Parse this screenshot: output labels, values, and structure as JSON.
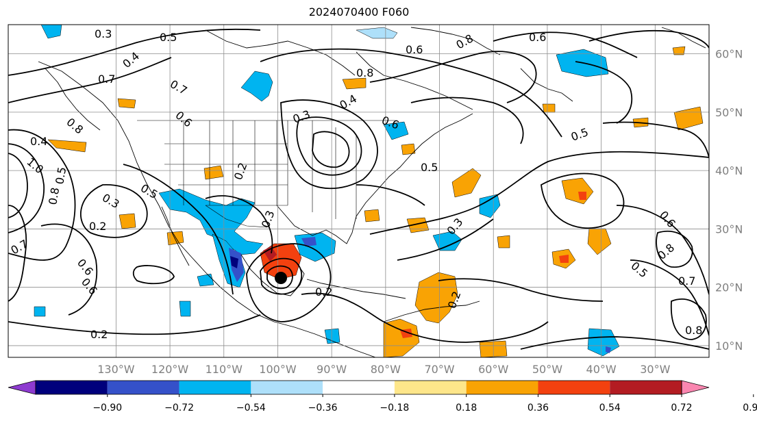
{
  "title": "2024070400 F060",
  "map": {
    "lon_range": [
      -150,
      -20
    ],
    "lat_range": [
      8,
      65
    ],
    "lon_ticks": [
      {
        "value": -130,
        "label": "130°W"
      },
      {
        "value": -120,
        "label": "120°W"
      },
      {
        "value": -110,
        "label": "110°W"
      },
      {
        "value": -100,
        "label": "100°W"
      },
      {
        "value": -90,
        "label": "90°W"
      },
      {
        "value": -80,
        "label": "80°W"
      },
      {
        "value": -70,
        "label": "70°W"
      },
      {
        "value": -60,
        "label": "60°W"
      },
      {
        "value": -50,
        "label": "50°W"
      },
      {
        "value": -40,
        "label": "40°W"
      },
      {
        "value": -30,
        "label": "30°W"
      }
    ],
    "lat_ticks": [
      {
        "value": 60,
        "label": "60°N"
      },
      {
        "value": 50,
        "label": "50°N"
      },
      {
        "value": 40,
        "label": "40°N"
      },
      {
        "value": 30,
        "label": "30°N"
      },
      {
        "value": 20,
        "label": "20°N"
      },
      {
        "value": 10,
        "label": "10°N"
      }
    ],
    "gridlines": true,
    "contour_labels": [
      "0.3",
      "0.5",
      "0.4",
      "0.7",
      "0.7",
      "0.6",
      "0.8",
      "0.4",
      "1.0",
      "0.5",
      "0.8",
      "0.3",
      "0.2",
      "0.5",
      "0.6",
      "0.6",
      "0.7",
      "0.8",
      "0.6",
      "0.8",
      "0.6",
      "0.5",
      "0.6",
      "0.5",
      "0.4",
      "0.3",
      "0.2",
      "0.3",
      "0.2",
      "0.3",
      "0.2",
      "0.6",
      "0.5",
      "0.8",
      "0.7",
      "0.8",
      "0.2"
    ]
  },
  "colorbar": {
    "labels": [
      "−0.90",
      "−0.72",
      "−0.54",
      "−0.36",
      "−0.18",
      "0.18",
      "0.36",
      "0.54",
      "0.72",
      "0.90"
    ],
    "colors": [
      "#8e3bd0",
      "#00007c",
      "#3551c9",
      "#00b4f0",
      "#aee0fa",
      "#ffffff",
      "#fee68a",
      "#f9a304",
      "#f3410f",
      "#b31c22",
      "#fa86b0"
    ]
  }
}
